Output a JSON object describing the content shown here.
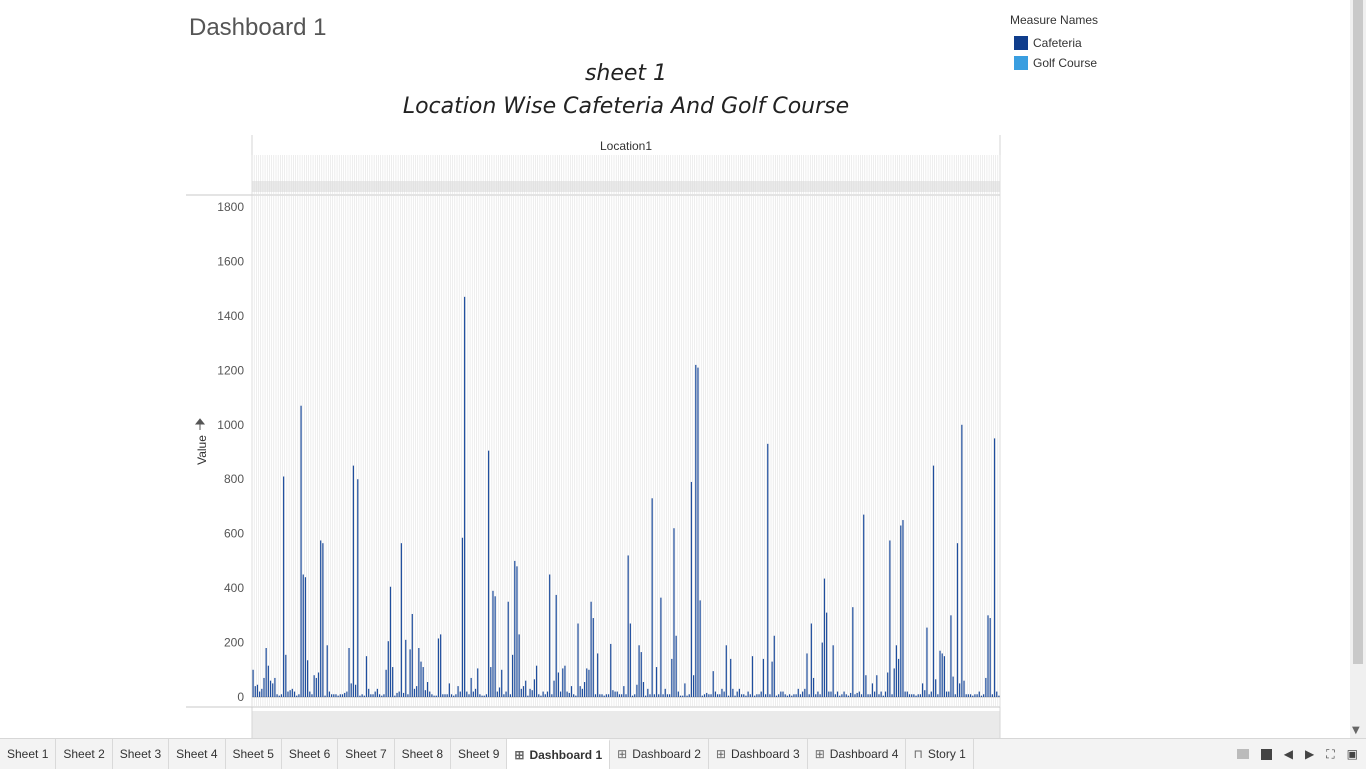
{
  "dashboard": {
    "title": "Dashboard 1"
  },
  "sheet_title": "sheet 1",
  "chart_title": "Location Wise  Cafeteria And  Golf  Course",
  "legend": {
    "title": "Measure Names",
    "items": [
      {
        "label": "Cafeteria",
        "color": "#0f3d8c"
      },
      {
        "label": "Golf Course",
        "color": "#3a9ee0"
      }
    ]
  },
  "chart_data": {
    "type": "bar",
    "title": "Location Wise  Cafeteria And  Golf  Course",
    "column_header": "Location1",
    "ylabel": "Value",
    "ylim": [
      0,
      1800
    ],
    "yticks": [
      0,
      200,
      400,
      600,
      800,
      1000,
      1200,
      1400,
      1600,
      1800
    ],
    "grid": true,
    "legend_position": "top-right",
    "series": [
      {
        "name": "Cafeteria",
        "color": "#1f4e9e",
        "values": [
          100,
          40,
          45,
          20,
          30,
          70,
          180,
          115,
          60,
          50,
          70,
          10,
          5,
          10,
          810,
          155,
          20,
          25,
          30,
          20,
          5,
          10,
          1070,
          450,
          440,
          135,
          20,
          10,
          80,
          70,
          90,
          575,
          565,
          5,
          190,
          20,
          10,
          10,
          10,
          5,
          10,
          10,
          15,
          20,
          180,
          50,
          850,
          45,
          800,
          5,
          10,
          5,
          150,
          30,
          10,
          10,
          20,
          30,
          10,
          5,
          10,
          100,
          205,
          405,
          110,
          5,
          15,
          20,
          565,
          15,
          210,
          10,
          175,
          305,
          30,
          40,
          180,
          130,
          110,
          25,
          55,
          20,
          10,
          5,
          5,
          215,
          230,
          10,
          10,
          10,
          50,
          10,
          5,
          10,
          40,
          20,
          585,
          1470,
          20,
          10,
          70,
          20,
          30,
          105,
          10,
          5,
          5,
          10,
          905,
          110,
          390,
          370,
          20,
          35,
          100,
          10,
          20,
          350,
          10,
          155,
          500,
          480,
          230,
          30,
          40,
          60,
          5,
          30,
          25,
          65,
          115,
          10,
          5,
          20,
          10,
          20,
          450,
          10,
          60,
          375,
          90,
          20,
          105,
          115,
          20,
          15,
          40,
          10,
          5,
          270,
          40,
          30,
          55,
          105,
          100,
          350,
          290,
          10,
          160,
          10,
          10,
          5,
          10,
          10,
          195,
          25,
          20,
          20,
          10,
          10,
          40,
          10,
          520,
          270,
          5,
          10,
          45,
          190,
          165,
          55,
          5,
          30,
          10,
          730,
          10,
          110,
          10,
          365,
          10,
          30,
          10,
          10,
          140,
          620,
          225,
          20,
          5,
          5,
          50,
          5,
          10,
          790,
          80,
          1220,
          1210,
          355,
          5,
          10,
          15,
          10,
          10,
          95,
          20,
          10,
          10,
          30,
          20,
          190,
          5,
          140,
          30,
          5,
          20,
          30,
          10,
          10,
          5,
          20,
          10,
          150,
          5,
          10,
          10,
          20,
          140,
          10,
          930,
          10,
          130,
          225,
          5,
          10,
          20,
          20,
          10,
          5,
          10,
          5,
          10,
          10,
          30,
          10,
          20,
          30,
          160,
          10,
          270,
          70,
          10,
          20,
          10,
          200,
          435,
          310,
          20,
          20,
          190,
          10,
          20,
          5,
          10,
          20,
          10,
          5,
          15,
          330,
          10,
          15,
          20,
          10,
          670,
          80,
          10,
          10,
          50,
          20,
          80,
          10,
          20,
          5,
          20,
          90,
          575,
          10,
          105,
          190,
          140,
          630,
          650,
          20,
          20,
          10,
          10,
          10,
          5,
          10,
          10,
          50,
          25,
          255,
          10,
          20,
          850,
          65,
          10,
          170,
          160,
          150,
          20,
          20,
          300,
          75,
          10,
          565,
          50,
          1000,
          60,
          10,
          10,
          10,
          5,
          10,
          10,
          20,
          5,
          10,
          70,
          300,
          290,
          10,
          950,
          20,
          5
        ]
      },
      {
        "name": "Golf Course",
        "color": "#3a9ee0",
        "values": []
      }
    ]
  },
  "tabs": [
    {
      "label": "Sheet 1",
      "icon": "",
      "active": false
    },
    {
      "label": "Sheet 2",
      "icon": "",
      "active": false
    },
    {
      "label": "Sheet 3",
      "icon": "",
      "active": false
    },
    {
      "label": "Sheet 4",
      "icon": "",
      "active": false
    },
    {
      "label": "Sheet 5",
      "icon": "",
      "active": false
    },
    {
      "label": "Sheet 6",
      "icon": "",
      "active": false
    },
    {
      "label": "Sheet 7",
      "icon": "",
      "active": false
    },
    {
      "label": "Sheet 8",
      "icon": "",
      "active": false
    },
    {
      "label": "Sheet 9",
      "icon": "",
      "active": false
    },
    {
      "label": "Dashboard 1",
      "icon": "dashboard-icon",
      "active": true
    },
    {
      "label": "Dashboard 2",
      "icon": "dashboard-icon",
      "active": false
    },
    {
      "label": "Dashboard 3",
      "icon": "dashboard-icon",
      "active": false
    },
    {
      "label": "Dashboard 4",
      "icon": "dashboard-icon",
      "active": false
    },
    {
      "label": "Story 1",
      "icon": "story-icon",
      "active": false
    }
  ]
}
